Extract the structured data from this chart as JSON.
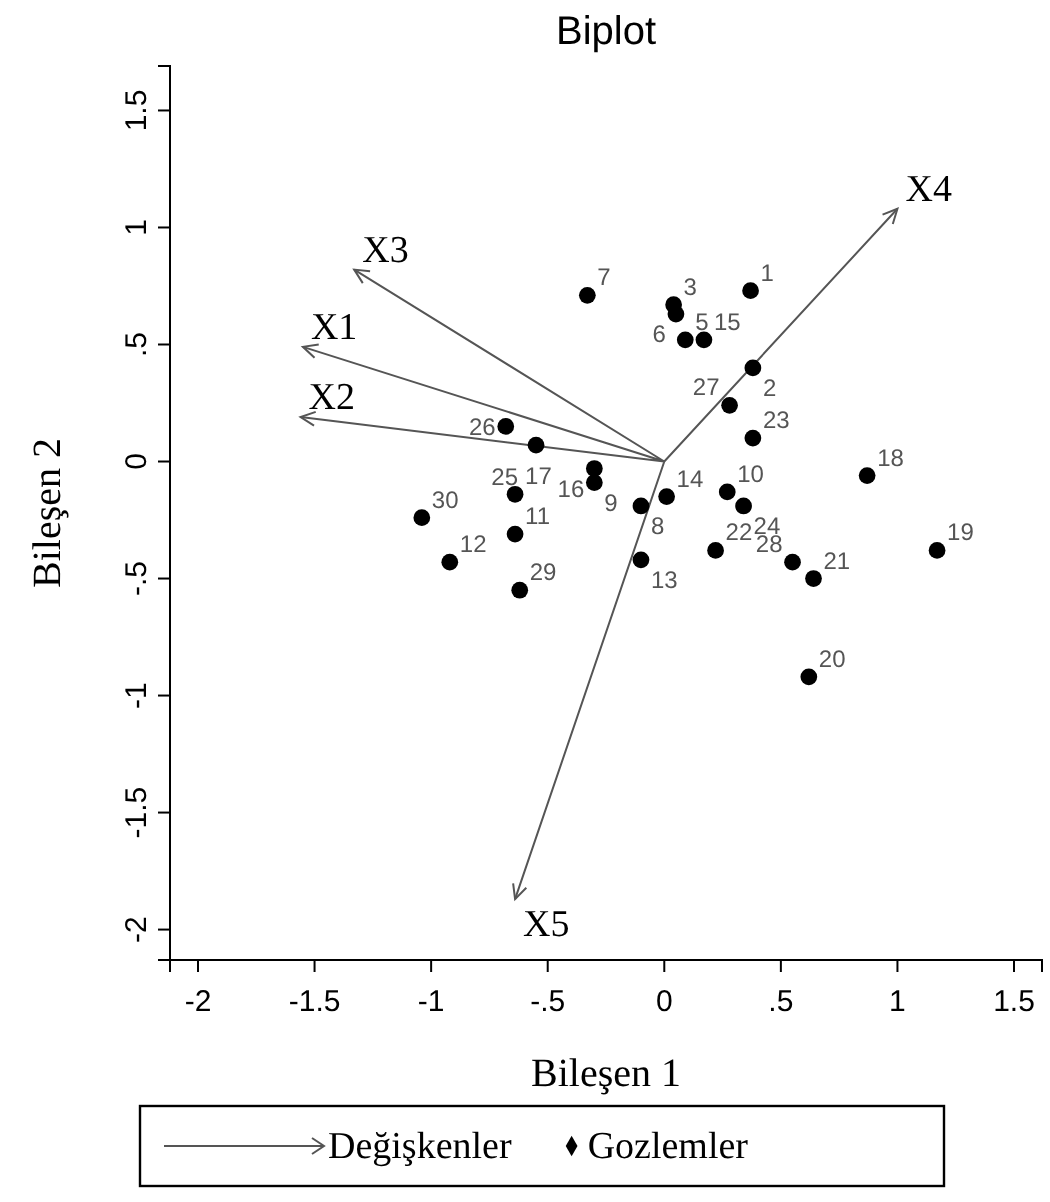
{
  "chart_data": {
    "type": "scatter",
    "title": "Biplot",
    "xlabel": "Bileşen 1",
    "ylabel": "Bileşen 2",
    "xlim": [
      -2.12,
      1.62
    ],
    "ylim": [
      -2.13,
      1.69
    ],
    "xticks": [
      -2,
      {
        "value": -1.5,
        "label": "-1.5"
      },
      -1,
      {
        "value": -0.5,
        "label": "-.5"
      },
      0,
      {
        "value": 0.5,
        "label": ".5"
      },
      1,
      {
        "value": 1.5,
        "label": "1.5"
      }
    ],
    "yticks": [
      -2,
      {
        "value": -1.5,
        "label": "-1.5"
      },
      -1,
      {
        "value": -0.5,
        "label": "-.5"
      },
      0,
      {
        "value": 0.5,
        "label": ".5"
      },
      1,
      {
        "value": 1.5,
        "label": "1.5"
      }
    ],
    "grid": false,
    "legend": "bottom",
    "series": [
      {
        "name": "Değişkenler",
        "type": "line",
        "color": "#555555",
        "marker": "none",
        "line_style": "solid",
        "x": [
          0,
          -1.55,
          null,
          0,
          -1.56,
          null,
          0,
          -1.33,
          null,
          0,
          1.0,
          null,
          0,
          -0.64
        ],
        "values": [
          0,
          0.49,
          null,
          0,
          0.19,
          null,
          0,
          0.82,
          null,
          0,
          1.08,
          null,
          0,
          -1.87
        ]
      },
      {
        "name": "Gozlemler",
        "type": "scatter",
        "color": "#000000",
        "marker": "circle",
        "x": [
          0.37,
          0.38,
          0.04,
          0.05,
          0.09,
          0.17,
          -0.33,
          -0.1,
          -0.3,
          0.27,
          -0.64,
          -0.92,
          -0.1,
          0.01,
          -0.3,
          0.87,
          -0.64,
          1.17,
          0.62,
          0.64,
          0.22,
          0.38,
          0.34,
          -0.55,
          -0.68,
          0.28,
          0.55,
          -0.62,
          -1.04
        ],
        "values": [
          0.73,
          0.4,
          0.67,
          0.63,
          0.52,
          0.52,
          0.71,
          -0.19,
          -0.09,
          -0.13,
          -0.31,
          -0.43,
          -0.42,
          -0.15,
          -0.03,
          -0.06,
          -0.14,
          -0.38,
          -0.92,
          -0.5,
          -0.38,
          0.1,
          -0.19,
          0.07,
          0.15,
          0.24,
          -0.43,
          -0.55,
          -0.24
        ]
      }
    ],
    "annotations": [
      {
        "text": "X1",
        "x": -1.55,
        "y": 0.49
      },
      {
        "text": "X2",
        "x": -1.56,
        "y": 0.19
      },
      {
        "text": "X3",
        "x": -1.33,
        "y": 0.82
      },
      {
        "text": "X4",
        "x": 1.0,
        "y": 1.08
      },
      {
        "text": "X5",
        "x": -0.64,
        "y": -1.87
      },
      {
        "text": "1",
        "x": 0.37,
        "y": 0.73
      },
      {
        "text": "2",
        "x": 0.38,
        "y": 0.4
      },
      {
        "text": "3",
        "x": 0.04,
        "y": 0.67
      },
      {
        "text": "6",
        "x": 0.05,
        "y": 0.63
      },
      {
        "text": "5",
        "x": 0.09,
        "y": 0.52
      },
      {
        "text": "15",
        "x": 0.17,
        "y": 0.52
      },
      {
        "text": "7",
        "x": -0.33,
        "y": 0.71
      },
      {
        "text": "8",
        "x": -0.1,
        "y": -0.19
      },
      {
        "text": "9",
        "x": -0.3,
        "y": -0.09
      },
      {
        "text": "10",
        "x": 0.27,
        "y": -0.13
      },
      {
        "text": "11",
        "x": -0.64,
        "y": -0.31
      },
      {
        "text": "12",
        "x": -0.92,
        "y": -0.43
      },
      {
        "text": "13",
        "x": -0.1,
        "y": -0.42
      },
      {
        "text": "14",
        "x": 0.01,
        "y": -0.15
      },
      {
        "text": "16",
        "x": -0.3,
        "y": -0.03
      },
      {
        "text": "18",
        "x": 0.87,
        "y": -0.06
      },
      {
        "text": "17",
        "x": -0.64,
        "y": -0.14
      },
      {
        "text": "19",
        "x": 1.17,
        "y": -0.38
      },
      {
        "text": "20",
        "x": 0.62,
        "y": -0.92
      },
      {
        "text": "21",
        "x": 0.64,
        "y": -0.5
      },
      {
        "text": "22",
        "x": 0.22,
        "y": -0.38
      },
      {
        "text": "23",
        "x": 0.38,
        "y": 0.1
      },
      {
        "text": "24",
        "x": 0.34,
        "y": -0.19
      },
      {
        "text": "25",
        "x": -0.55,
        "y": 0.07
      },
      {
        "text": "26",
        "x": -0.68,
        "y": 0.15
      },
      {
        "text": "27",
        "x": 0.28,
        "y": 0.24
      },
      {
        "text": "28",
        "x": 0.55,
        "y": -0.43
      },
      {
        "text": "29",
        "x": -0.62,
        "y": -0.55
      },
      {
        "text": "30",
        "x": -1.04,
        "y": -0.24
      }
    ]
  }
}
